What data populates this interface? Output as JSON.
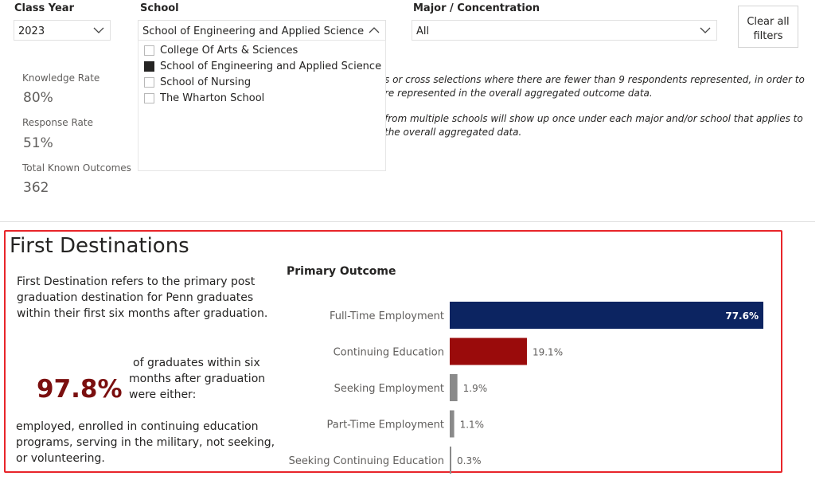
{
  "filters": {
    "class_year": {
      "label": "Class Year",
      "value": "2023"
    },
    "school": {
      "label": "School",
      "value": "School of Engineering and Applied Science",
      "options": [
        {
          "label": "College Of Arts & Sciences",
          "checked": false
        },
        {
          "label": "School of Engineering and Applied Science",
          "checked": true
        },
        {
          "label": "School of Nursing",
          "checked": false
        },
        {
          "label": "The Wharton School",
          "checked": false
        }
      ]
    },
    "major": {
      "label": "Major / Concentration",
      "value": "All"
    },
    "clear_all_label_1": "Clear all",
    "clear_all_label_2": "filters"
  },
  "notes": {
    "line1": "s or cross selections where there are fewer than 9 respondents represented, in order to",
    "line2": "re represented in the overall aggregated outcome data.",
    "line3": "from multiple schools will show up once under each major and/or school that applies to",
    "line4": "the overall aggregated data."
  },
  "kpis": {
    "knowledge_rate": {
      "label": "Knowledge Rate",
      "value": "80%"
    },
    "response_rate": {
      "label": "Response Rate",
      "value": "51%"
    },
    "total_known": {
      "label": "Total Known Outcomes",
      "value": "362"
    }
  },
  "first_destinations": {
    "title": "First Destinations",
    "intro": {
      "line1": "First Destination refers to the primary post",
      "line2": "graduation destination for Penn graduates",
      "line3": "within their first six months after graduation."
    },
    "highlight_value": "97.8%",
    "highlight_text": {
      "line1": "of graduates within six",
      "line2": "months after graduation",
      "line3": "were either:"
    },
    "outcome_text": {
      "line1": "employed, enrolled in continuing education",
      "line2": "programs, serving in the military, not seeking,",
      "line3": "or volunteering."
    }
  },
  "chart_data": {
    "type": "bar",
    "orientation": "horizontal",
    "title": "Primary Outcome",
    "categories": [
      "Full-Time Employment",
      "Continuing Education",
      "Seeking Employment",
      "Part-Time Employment",
      "Seeking Continuing Education"
    ],
    "values": [
      77.6,
      19.1,
      1.9,
      1.1,
      0.3
    ],
    "labels": [
      "77.6%",
      "19.1%",
      "1.9%",
      "1.1%",
      "0.3%"
    ],
    "colors": [
      "#0c2461",
      "#9a0b0b",
      "#8a8a8a",
      "#8a8a8a",
      "#8a8a8a"
    ],
    "xlim": [
      0,
      77.6
    ],
    "grid": false
  }
}
